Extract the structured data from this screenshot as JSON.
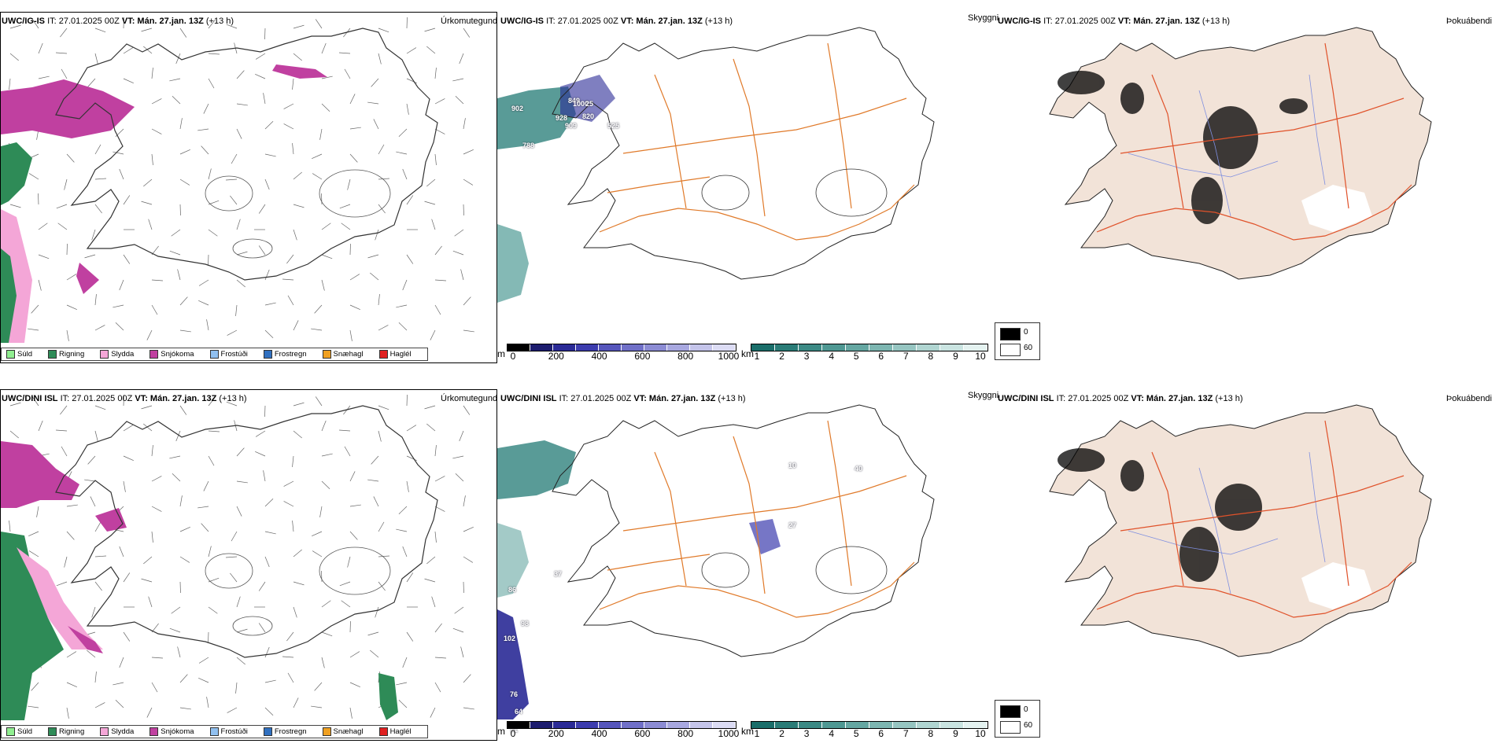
{
  "rows": [
    {
      "model_label": "UWC/IG-IS",
      "it_label": "IT: 27.01.2025 00Z",
      "vt_prefix": "VT:",
      "vt_value": "Mán. 27.jan. 13Z",
      "lead": "(+13 h)",
      "panel_titles": [
        "Úrkomutegund",
        "Skyggni",
        "Þokuábendi"
      ],
      "station_values": [
        "902",
        "849",
        "928",
        "909",
        "820",
        "525",
        "1000",
        "25",
        "788"
      ]
    },
    {
      "model_label": "UWC/DINI ISL",
      "it_label": "IT: 27.01.2025 00Z",
      "vt_prefix": "VT:",
      "vt_value": "Mán. 27.jan. 13Z",
      "lead": "(+13 h)",
      "panel_titles": [
        "Úrkomutegund",
        "Skyggni",
        "Þokuábendi"
      ],
      "station_values": [
        "27",
        "40",
        "10",
        "37",
        "86",
        "102",
        "98",
        "76",
        "64",
        "71"
      ]
    }
  ],
  "precip_legend": [
    {
      "label": "Súld",
      "color": "#90ee90"
    },
    {
      "label": "Rigning",
      "color": "#2e8b57"
    },
    {
      "label": "Slydda",
      "color": "#f4a6d7"
    },
    {
      "label": "Snjókoma",
      "color": "#c040a0"
    },
    {
      "label": "Frostúði",
      "color": "#90c0f0"
    },
    {
      "label": "Frostregn",
      "color": "#3070c0"
    },
    {
      "label": "Snæhagl",
      "color": "#f0a020"
    },
    {
      "label": "Haglél",
      "color": "#e02020"
    }
  ],
  "ceiling_bar": {
    "unit": "m",
    "ticks": [
      "0",
      "200",
      "400",
      "600",
      "800",
      "1000"
    ],
    "colors": [
      "#000000",
      "#1c1c6e",
      "#2a2a96",
      "#3c3cae",
      "#5656bc",
      "#7070c8",
      "#8c8cd4",
      "#a8a8e0",
      "#c4c4ea",
      "#dcdcf4"
    ]
  },
  "vis_bar": {
    "unit": "km",
    "ticks": [
      "1",
      "2",
      "3",
      "4",
      "5",
      "6",
      "7",
      "8",
      "9",
      "10"
    ],
    "colors": [
      "#1a6e6a",
      "#2a7c77",
      "#3c8a85",
      "#4f9893",
      "#65a7a2",
      "#7db6b1",
      "#96c5c1",
      "#b0d5d1",
      "#cae4e1",
      "#e4f2f0"
    ]
  },
  "fog_legend": {
    "values": [
      "0",
      "60"
    ],
    "colors": [
      "#000000",
      "#ffffff"
    ]
  },
  "colors": {
    "road": "#e07a2a",
    "fog_land": "#f2e3d8",
    "river": "#7f8fe0",
    "road_fog": "#e0522a"
  }
}
